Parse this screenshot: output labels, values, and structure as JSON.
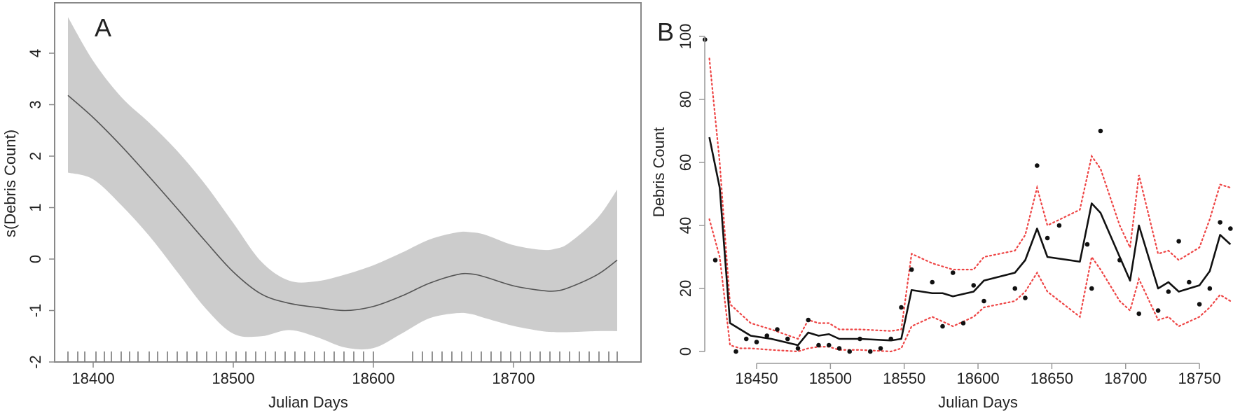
{
  "figure": {
    "panels": [
      {
        "letter": "A",
        "ylabel": "s(Debris Count)",
        "xlabel": "Julian Days"
      },
      {
        "letter": "B",
        "ylabel": "Debris Count",
        "xlabel": "Julian Days"
      }
    ]
  },
  "colors": {
    "ci_band": "#cccccc",
    "smooth_line": "#555555",
    "fitted_line": "#111111",
    "ci_dotted": "#ee4444",
    "points": "#111111",
    "axis": "#888888"
  },
  "chart_data": [
    {
      "panel": "A",
      "type": "area",
      "title": "A",
      "xlabel": "Julian Days",
      "ylabel": "s(Debris Count)",
      "xlim": [
        18370,
        18790
      ],
      "ylim": [
        -2,
        4.7
      ],
      "xticks": [
        18400,
        18500,
        18600,
        18700
      ],
      "yticks": [
        -2,
        -1,
        0,
        1,
        2,
        3,
        4
      ],
      "grid": false,
      "series": [
        {
          "name": "smooth estimate",
          "x": [
            18382,
            18400,
            18420,
            18440,
            18460,
            18480,
            18500,
            18520,
            18540,
            18560,
            18580,
            18600,
            18620,
            18640,
            18660,
            18670,
            18680,
            18700,
            18720,
            18730,
            18740,
            18760,
            18774
          ],
          "y": [
            3.18,
            2.75,
            2.2,
            1.6,
            0.98,
            0.35,
            -0.25,
            -0.68,
            -0.86,
            -0.94,
            -1.0,
            -0.92,
            -0.72,
            -0.47,
            -0.3,
            -0.29,
            -0.35,
            -0.52,
            -0.61,
            -0.62,
            -0.55,
            -0.3,
            -0.02
          ]
        },
        {
          "name": "upper CI",
          "x": [
            18382,
            18400,
            18420,
            18440,
            18460,
            18480,
            18500,
            18520,
            18540,
            18560,
            18580,
            18600,
            18620,
            18640,
            18660,
            18670,
            18680,
            18700,
            18720,
            18730,
            18740,
            18760,
            18774
          ],
          "y": [
            4.7,
            3.85,
            3.15,
            2.65,
            2.1,
            1.45,
            0.7,
            -0.05,
            -0.42,
            -0.43,
            -0.3,
            -0.12,
            0.12,
            0.38,
            0.52,
            0.52,
            0.47,
            0.27,
            0.18,
            0.2,
            0.32,
            0.8,
            1.35
          ]
        },
        {
          "name": "lower CI",
          "x": [
            18382,
            18400,
            18420,
            18440,
            18460,
            18480,
            18500,
            18520,
            18540,
            18560,
            18580,
            18600,
            18620,
            18640,
            18660,
            18670,
            18680,
            18700,
            18720,
            18730,
            18740,
            18760,
            18774
          ],
          "y": [
            1.68,
            1.55,
            1.05,
            0.45,
            -0.25,
            -0.95,
            -1.45,
            -1.5,
            -1.38,
            -1.52,
            -1.72,
            -1.73,
            -1.45,
            -1.15,
            -1.05,
            -1.07,
            -1.15,
            -1.3,
            -1.4,
            -1.42,
            -1.42,
            -1.4,
            -1.4
          ]
        }
      ],
      "rug": [
        18382,
        18389,
        18394,
        18402,
        18408,
        18413,
        18420,
        18426,
        18432,
        18440,
        18446,
        18453,
        18460,
        18467,
        18474,
        18481,
        18488,
        18495,
        18502,
        18509,
        18516,
        18523,
        18530,
        18537,
        18544,
        18551,
        18558,
        18565,
        18572,
        18579,
        18586,
        18593,
        18600,
        18628,
        18635,
        18642,
        18649,
        18656,
        18663,
        18670,
        18677,
        18684,
        18691,
        18698,
        18705,
        18712,
        18719,
        18726,
        18733,
        18740,
        18747,
        18754,
        18761,
        18768,
        18774
      ]
    },
    {
      "panel": "B",
      "type": "line",
      "title": "B",
      "xlabel": "Julian Days",
      "ylabel": "Debris Count",
      "xlim": [
        18415,
        18775
      ],
      "ylim": [
        0,
        100
      ],
      "xticks": [
        18450,
        18500,
        18550,
        18600,
        18650,
        18700,
        18750
      ],
      "yticks": [
        0,
        20,
        40,
        60,
        80,
        100
      ],
      "grid": false,
      "series": [
        {
          "name": "observed",
          "style": "points",
          "x": [
            18415,
            18422,
            18436,
            18443,
            18450,
            18457,
            18464,
            18471,
            18478,
            18485,
            18492,
            18499,
            18506,
            18513,
            18520,
            18527,
            18534,
            18541,
            18548,
            18555,
            18569,
            18576,
            18583,
            18590,
            18597,
            18604,
            18625,
            18632,
            18640,
            18647,
            18655,
            18674,
            18677,
            18683,
            18696,
            18709,
            18722,
            18729,
            18736,
            18743,
            18750,
            18757,
            18764,
            18771
          ],
          "y": [
            99,
            29,
            0,
            4,
            3,
            5,
            7,
            4,
            1,
            10,
            2,
            2,
            1,
            0,
            4,
            0,
            1,
            4,
            14,
            26,
            22,
            8,
            25,
            9,
            21,
            16,
            20,
            17,
            59,
            36,
            40,
            34,
            20,
            70,
            29,
            12,
            13,
            19,
            35,
            22,
            15,
            20,
            41,
            39
          ]
        },
        {
          "name": "fitted",
          "style": "solid",
          "x": [
            18418,
            18425,
            18432,
            18439,
            18446,
            18460,
            18478,
            18485,
            18492,
            18499,
            18506,
            18520,
            18541,
            18548,
            18555,
            18569,
            18576,
            18583,
            18597,
            18604,
            18625,
            18632,
            18640,
            18647,
            18669,
            18677,
            18683,
            18696,
            18703,
            18709,
            18722,
            18729,
            18736,
            18750,
            18757,
            18764,
            18771
          ],
          "y": [
            68,
            52,
            9,
            7,
            5,
            4,
            2,
            6,
            5,
            5.5,
            4,
            4,
            3.5,
            4,
            19.5,
            18.5,
            18.5,
            17.5,
            19,
            22.5,
            25,
            29,
            39,
            30,
            28.5,
            47,
            44,
            30,
            22.5,
            40,
            20,
            22,
            19,
            21,
            25.5,
            37,
            34
          ]
        },
        {
          "name": "upper interval",
          "style": "dotted",
          "x": [
            18418,
            18425,
            18432,
            18439,
            18446,
            18460,
            18478,
            18485,
            18492,
            18499,
            18506,
            18520,
            18541,
            18548,
            18555,
            18569,
            18583,
            18597,
            18604,
            18625,
            18632,
            18640,
            18647,
            18669,
            18677,
            18683,
            18696,
            18703,
            18709,
            18722,
            18729,
            18736,
            18750,
            18757,
            18764,
            18771
          ],
          "y": [
            93,
            60,
            15,
            12,
            9,
            7,
            4,
            10,
            9,
            9,
            7,
            7,
            6.5,
            7,
            31,
            28,
            26,
            26,
            30,
            32,
            37,
            52,
            40,
            45,
            62,
            58,
            40,
            33,
            56,
            31,
            32,
            29,
            33,
            42,
            53,
            52
          ]
        },
        {
          "name": "lower interval",
          "style": "dotted",
          "x": [
            18418,
            18425,
            18432,
            18439,
            18446,
            18460,
            18478,
            18485,
            18492,
            18499,
            18506,
            18520,
            18541,
            18548,
            18555,
            18569,
            18583,
            18597,
            18604,
            18625,
            18632,
            18640,
            18647,
            18669,
            18677,
            18683,
            18696,
            18703,
            18709,
            18722,
            18729,
            18736,
            18750,
            18757,
            18764,
            18771
          ],
          "y": [
            42,
            30,
            2,
            1,
            1,
            0.5,
            0,
            1,
            1.5,
            1.5,
            0.5,
            0.5,
            0,
            1,
            8,
            11,
            8,
            11,
            14,
            16,
            19,
            25,
            19,
            11,
            30,
            26,
            16,
            13,
            23,
            10,
            11,
            8,
            11,
            14,
            18,
            16
          ]
        }
      ]
    }
  ]
}
